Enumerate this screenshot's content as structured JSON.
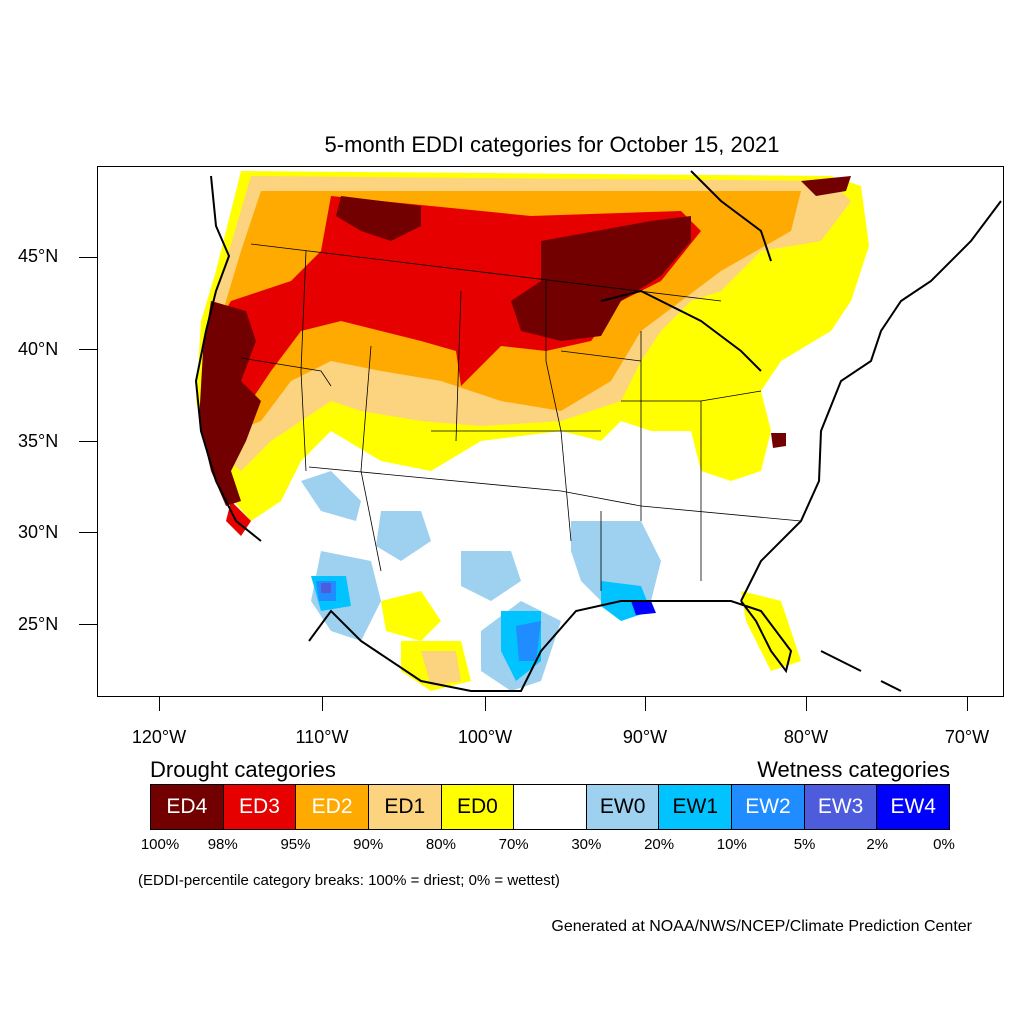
{
  "title": "5-month EDDI categories for October 15, 2021",
  "lat_labels": [
    "45°N",
    "40°N",
    "35°N",
    "30°N",
    "25°N"
  ],
  "lon_labels": [
    "120°W",
    "110°W",
    "100°W",
    "90°W",
    "80°W",
    "70°W"
  ],
  "legend": {
    "drought_heading": "Drought categories",
    "wetness_heading": "Wetness categories",
    "categories": [
      {
        "label": "ED4",
        "color": "#730000",
        "text_color": "#ffffff"
      },
      {
        "label": "ED3",
        "color": "#e60000",
        "text_color": "#ffffff"
      },
      {
        "label": "ED2",
        "color": "#ffaa00",
        "text_color": "#ffffff"
      },
      {
        "label": "ED1",
        "color": "#fcd37f",
        "text_color": "#000000"
      },
      {
        "label": "ED0",
        "color": "#ffff00",
        "text_color": "#000000"
      },
      {
        "label": "",
        "color": "#ffffff",
        "text_color": "#000000"
      },
      {
        "label": "EW0",
        "color": "#9dd1ef",
        "text_color": "#000000"
      },
      {
        "label": "EW1",
        "color": "#00c3ff",
        "text_color": "#000000"
      },
      {
        "label": "EW2",
        "color": "#1f8cff",
        "text_color": "#ffffff"
      },
      {
        "label": "EW3",
        "color": "#4d5cdc",
        "text_color": "#ffffff"
      },
      {
        "label": "EW4",
        "color": "#0000ff",
        "text_color": "#ffffff"
      }
    ],
    "breaks": [
      "100%",
      "98%",
      "95%",
      "90%",
      "80%",
      "70%",
      "30%",
      "20%",
      "10%",
      "5%",
      "2%",
      "0%"
    ]
  },
  "note": "(EDDI-percentile category breaks: 100% = driest; 0% = wettest)",
  "credit": "Generated at NOAA/NWS/NCEP/Climate Prediction Center"
}
